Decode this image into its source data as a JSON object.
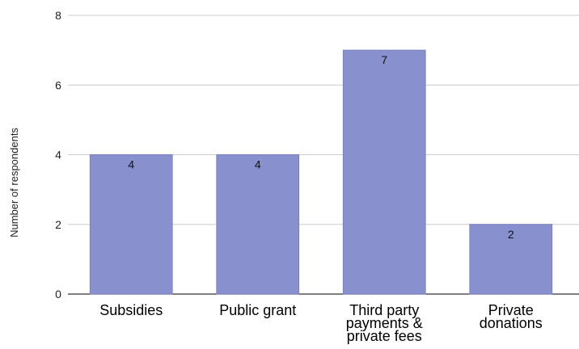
{
  "chart_data": {
    "type": "bar",
    "categories": [
      [
        "Subsidies"
      ],
      [
        "Public grant"
      ],
      [
        "Third party",
        "payments &",
        "private fees"
      ],
      [
        "Private",
        "donations"
      ]
    ],
    "values": [
      4,
      4,
      7,
      2
    ],
    "data_labels": [
      "4",
      "4",
      "7",
      "2"
    ],
    "title": "",
    "xlabel": "",
    "ylabel": "Number of respondents",
    "ylim": [
      0,
      8
    ],
    "yticks": [
      0,
      2,
      4,
      6,
      8
    ],
    "grid": true,
    "bar_color": "#8890ce",
    "grid_color": "#cccccc",
    "axis_color": "#333333"
  }
}
